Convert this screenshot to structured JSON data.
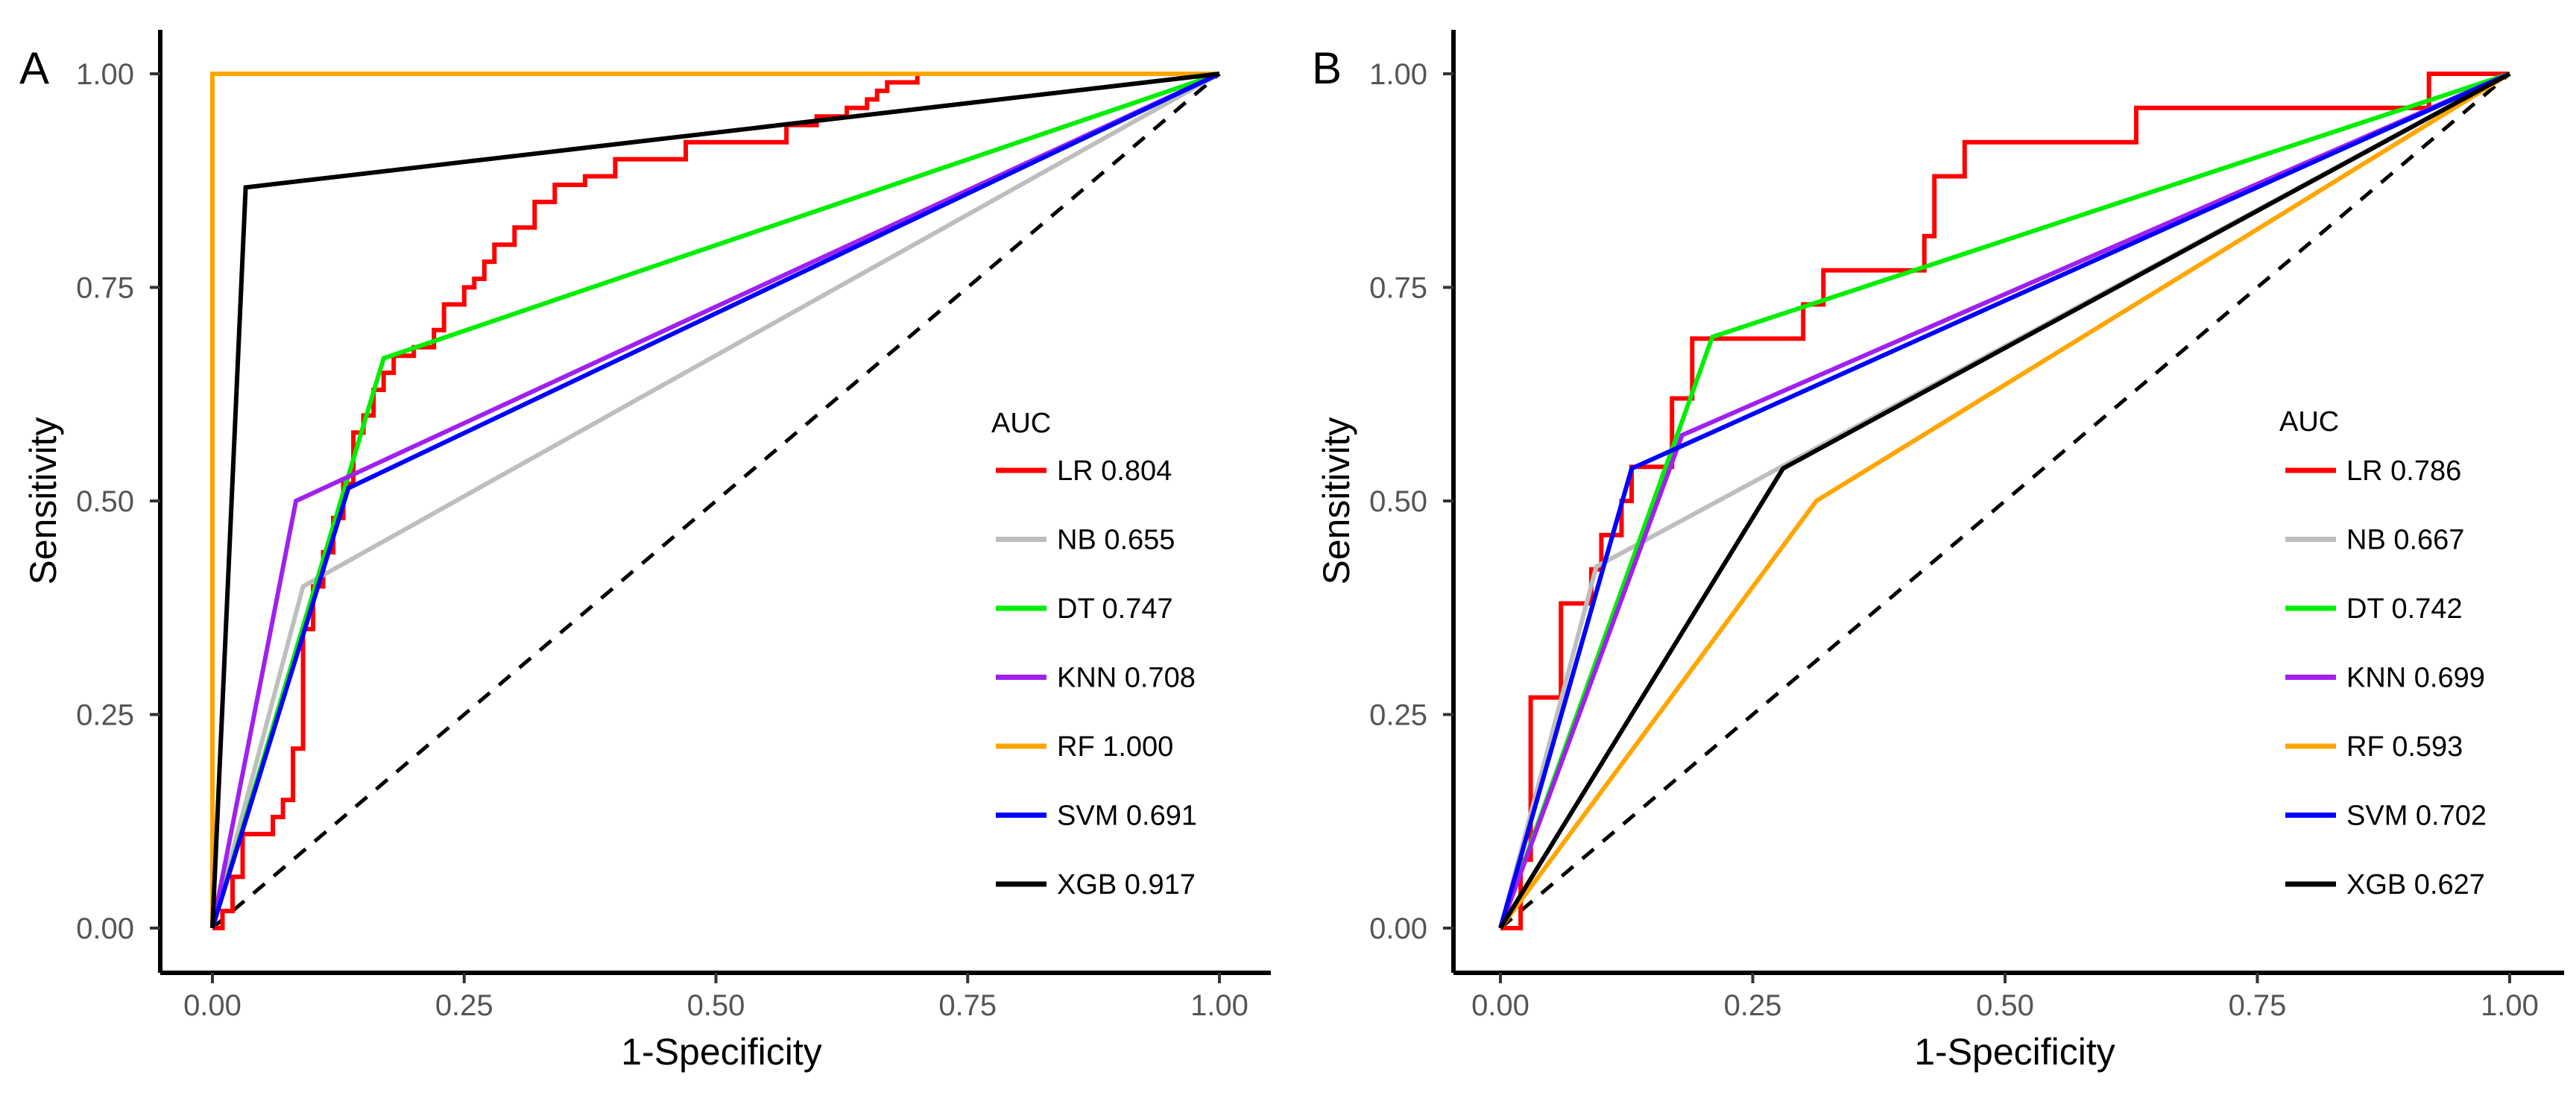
{
  "chart_data": [
    {
      "type": "line",
      "panel_label": "A",
      "xlabel": "1-Specificity",
      "ylabel": "Sensitivity",
      "xlim": [
        0,
        1
      ],
      "ylim": [
        0,
        1
      ],
      "x_ticks": [
        "0.00",
        "0.25",
        "0.50",
        "0.75",
        "1.00"
      ],
      "y_ticks": [
        "0.00",
        "0.25",
        "0.50",
        "0.75",
        "1.00"
      ],
      "legend_title": "AUC",
      "legend_position": "right",
      "series": [
        {
          "name": "LR",
          "auc": "0.804",
          "legend_label": "LR 0.804",
          "color": "#FF0000",
          "step": true,
          "x": [
            0,
            0.01,
            0.01,
            0.02,
            0.02,
            0.03,
            0.03,
            0.06,
            0.06,
            0.07,
            0.07,
            0.08,
            0.08,
            0.09,
            0.09,
            0.1,
            0.1,
            0.11,
            0.11,
            0.12,
            0.12,
            0.13,
            0.13,
            0.14,
            0.14,
            0.15,
            0.15,
            0.16,
            0.16,
            0.17,
            0.17,
            0.18,
            0.18,
            0.2,
            0.2,
            0.22,
            0.22,
            0.23,
            0.23,
            0.25,
            0.25,
            0.26,
            0.26,
            0.27,
            0.27,
            0.28,
            0.28,
            0.3,
            0.3,
            0.32,
            0.32,
            0.34,
            0.34,
            0.36,
            0.36,
            0.37,
            0.37,
            0.4,
            0.4,
            0.43,
            0.43,
            0.47,
            0.47,
            0.52,
            0.52,
            0.57,
            0.57,
            0.6,
            0.6,
            0.63,
            0.63,
            0.65,
            0.65,
            0.66,
            0.66,
            0.67,
            0.67,
            0.7,
            0.7,
            1.0
          ],
          "y": [
            0,
            0,
            0.02,
            0.02,
            0.06,
            0.06,
            0.11,
            0.11,
            0.13,
            0.13,
            0.15,
            0.15,
            0.21,
            0.21,
            0.35,
            0.35,
            0.4,
            0.4,
            0.44,
            0.44,
            0.48,
            0.48,
            0.52,
            0.52,
            0.58,
            0.58,
            0.6,
            0.6,
            0.63,
            0.63,
            0.65,
            0.65,
            0.67,
            0.67,
            0.68,
            0.68,
            0.7,
            0.7,
            0.73,
            0.73,
            0.75,
            0.75,
            0.76,
            0.76,
            0.78,
            0.78,
            0.8,
            0.8,
            0.82,
            0.82,
            0.85,
            0.85,
            0.87,
            0.87,
            0.87,
            0.87,
            0.88,
            0.88,
            0.9,
            0.9,
            0.9,
            0.9,
            0.92,
            0.92,
            0.92,
            0.92,
            0.94,
            0.94,
            0.95,
            0.95,
            0.96,
            0.96,
            0.97,
            0.97,
            0.98,
            0.98,
            0.99,
            0.99,
            1.0,
            1.0
          ]
        },
        {
          "name": "NB",
          "auc": "0.655",
          "legend_label": "NB 0.655",
          "color": "#BEBEBE",
          "step": false,
          "x": [
            0,
            0.09,
            1
          ],
          "y": [
            0,
            0.4,
            1
          ]
        },
        {
          "name": "DT",
          "auc": "0.747",
          "legend_label": "DT 0.747",
          "color": "#00EE00",
          "step": false,
          "x": [
            0,
            0.17,
            1
          ],
          "y": [
            0,
            0.667,
            1
          ]
        },
        {
          "name": "KNN",
          "auc": "0.708",
          "legend_label": "KNN 0.708",
          "color": "#A020F0",
          "step": false,
          "x": [
            0,
            0.083,
            1
          ],
          "y": [
            0,
            0.5,
            1
          ]
        },
        {
          "name": "RF",
          "auc": "1.000",
          "legend_label": "RF 1.000",
          "color": "#FFA500",
          "step": false,
          "x": [
            0,
            0,
            1
          ],
          "y": [
            0,
            1,
            1
          ]
        },
        {
          "name": "SVM",
          "auc": "0.691",
          "legend_label": "SVM 0.691",
          "color": "#0000FF",
          "step": false,
          "x": [
            0,
            0.135,
            1
          ],
          "y": [
            0,
            0.515,
            1
          ]
        },
        {
          "name": "XGB",
          "auc": "0.917",
          "legend_label": "XGB 0.917",
          "color": "#000000",
          "step": false,
          "x": [
            0,
            0.033,
            1
          ],
          "y": [
            0,
            0.867,
            1
          ]
        }
      ]
    },
    {
      "type": "line",
      "panel_label": "B",
      "xlabel": "1-Specificity",
      "ylabel": "Sensitivity",
      "xlim": [
        0,
        1
      ],
      "ylim": [
        0,
        1
      ],
      "x_ticks": [
        "0.00",
        "0.25",
        "0.50",
        "0.75",
        "1.00"
      ],
      "y_ticks": [
        "0.00",
        "0.25",
        "0.50",
        "0.75",
        "1.00"
      ],
      "legend_title": "AUC",
      "legend_position": "right",
      "series": [
        {
          "name": "LR",
          "auc": "0.786",
          "legend_label": "LR 0.786",
          "color": "#FF0000",
          "step": true,
          "x": [
            0,
            0.01,
            0.01,
            0.02,
            0.02,
            0.03,
            0.03,
            0.06,
            0.06,
            0.08,
            0.08,
            0.09,
            0.09,
            0.1,
            0.1,
            0.11,
            0.11,
            0.12,
            0.12,
            0.13,
            0.13,
            0.14,
            0.14,
            0.17,
            0.17,
            0.19,
            0.19,
            0.21,
            0.21,
            0.3,
            0.3,
            0.32,
            0.32,
            0.36,
            0.36,
            0.42,
            0.42,
            0.43,
            0.43,
            0.44,
            0.44,
            0.46,
            0.46,
            0.51,
            0.51,
            0.63,
            0.63,
            0.92,
            0.92,
            1.0
          ],
          "y": [
            0,
            0,
            0,
            0,
            0.08,
            0.08,
            0.27,
            0.27,
            0.38,
            0.38,
            0.38,
            0.38,
            0.42,
            0.42,
            0.46,
            0.46,
            0.46,
            0.46,
            0.5,
            0.5,
            0.54,
            0.54,
            0.54,
            0.54,
            0.62,
            0.62,
            0.69,
            0.69,
            0.69,
            0.69,
            0.73,
            0.73,
            0.77,
            0.77,
            0.77,
            0.77,
            0.81,
            0.81,
            0.88,
            0.88,
            0.88,
            0.88,
            0.92,
            0.92,
            0.92,
            0.92,
            0.96,
            0.96,
            1.0,
            1.0
          ]
        },
        {
          "name": "NB",
          "auc": "0.667",
          "legend_label": "NB 0.667",
          "color": "#BEBEBE",
          "step": false,
          "x": [
            0,
            0.095,
            1
          ],
          "y": [
            0,
            0.423,
            1
          ]
        },
        {
          "name": "DT",
          "auc": "0.742",
          "legend_label": "DT 0.742",
          "color": "#00EE00",
          "step": false,
          "x": [
            0,
            0.21,
            1
          ],
          "y": [
            0,
            0.692,
            1
          ]
        },
        {
          "name": "KNN",
          "auc": "0.699",
          "legend_label": "KNN 0.699",
          "color": "#A020F0",
          "step": false,
          "x": [
            0,
            0.18,
            1
          ],
          "y": [
            0,
            0.577,
            1
          ]
        },
        {
          "name": "RF",
          "auc": "0.593",
          "legend_label": "RF 0.593",
          "color": "#FFA500",
          "step": false,
          "x": [
            0,
            0.313,
            1
          ],
          "y": [
            0,
            0.5,
            1
          ]
        },
        {
          "name": "SVM",
          "auc": "0.702",
          "legend_label": "SVM 0.702",
          "color": "#0000FF",
          "step": false,
          "x": [
            0,
            0.13,
            1
          ],
          "y": [
            0,
            0.538,
            1
          ]
        },
        {
          "name": "XGB",
          "auc": "0.627",
          "legend_label": "XGB 0.627",
          "color": "#000000",
          "step": false,
          "x": [
            0,
            0.28,
            1
          ],
          "y": [
            0,
            0.538,
            1
          ]
        }
      ]
    }
  ]
}
